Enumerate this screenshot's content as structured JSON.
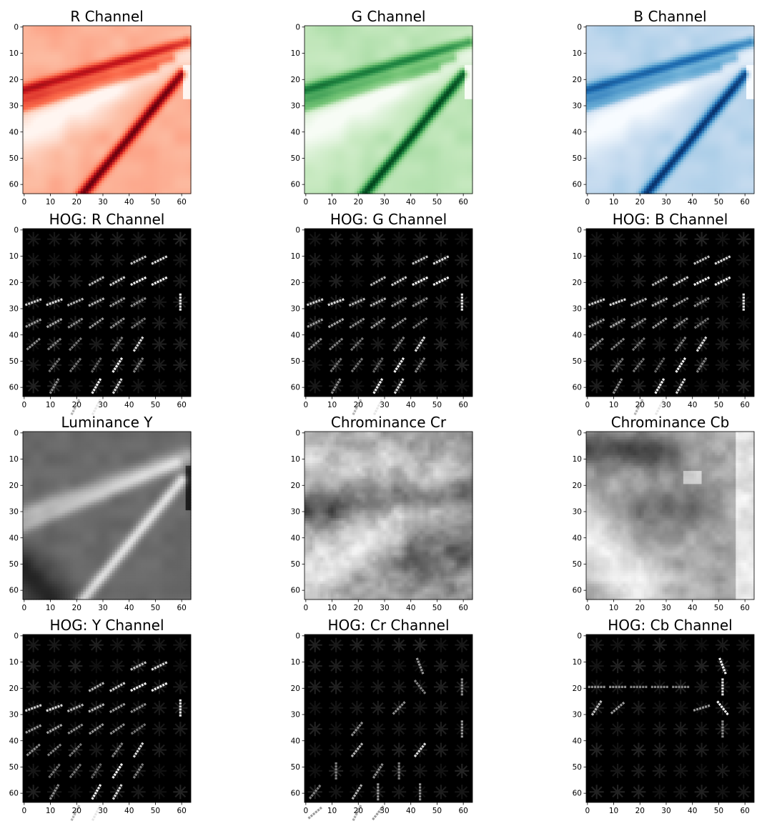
{
  "figure": {
    "background": "#ffffff"
  },
  "chart_data": [
    {
      "type": "heatmap",
      "title": "R Channel",
      "colormap": "Reds",
      "xlim": [
        0,
        63
      ],
      "ylim": [
        63,
        0
      ],
      "xticks": [
        "0",
        "10",
        "20",
        "30",
        "40",
        "50",
        "60"
      ],
      "yticks": [
        "0",
        "10",
        "20",
        "30",
        "40",
        "50",
        "60"
      ],
      "content": "image",
      "edge": "light-left",
      "grid": false
    },
    {
      "type": "heatmap",
      "title": "G Channel",
      "colormap": "Greens",
      "xlim": [
        0,
        63
      ],
      "ylim": [
        63,
        0
      ],
      "xticks": [
        "0",
        "10",
        "20",
        "30",
        "40",
        "50",
        "60"
      ],
      "yticks": [
        "0",
        "10",
        "20",
        "30",
        "40",
        "50",
        "60"
      ],
      "content": "image",
      "edge": "light-left",
      "grid": false
    },
    {
      "type": "heatmap",
      "title": "B Channel",
      "colormap": "Blues",
      "xlim": [
        0,
        63
      ],
      "ylim": [
        63,
        0
      ],
      "xticks": [
        "0",
        "10",
        "20",
        "30",
        "40",
        "50",
        "60"
      ],
      "yticks": [
        "0",
        "10",
        "20",
        "30",
        "40",
        "50",
        "60"
      ],
      "content": "image",
      "edge": "light-left",
      "grid": false
    },
    {
      "type": "heatmap",
      "title": "HOG: R Channel",
      "colormap": "gray",
      "xlim": [
        0,
        63
      ],
      "ylim": [
        63,
        0
      ],
      "xticks": [
        "0",
        "10",
        "20",
        "30",
        "40",
        "50",
        "60"
      ],
      "yticks": [
        "0",
        "10",
        "20",
        "30",
        "40",
        "50",
        "60"
      ],
      "content": "hog",
      "variant": "rgb",
      "grid": false
    },
    {
      "type": "heatmap",
      "title": "HOG: G Channel",
      "colormap": "gray",
      "xlim": [
        0,
        63
      ],
      "ylim": [
        63,
        0
      ],
      "xticks": [
        "0",
        "10",
        "20",
        "30",
        "40",
        "50",
        "60"
      ],
      "yticks": [
        "0",
        "10",
        "20",
        "30",
        "40",
        "50",
        "60"
      ],
      "content": "hog",
      "variant": "rgb",
      "grid": false
    },
    {
      "type": "heatmap",
      "title": "HOG: B Channel",
      "colormap": "gray",
      "xlim": [
        0,
        63
      ],
      "ylim": [
        63,
        0
      ],
      "xticks": [
        "0",
        "10",
        "20",
        "30",
        "40",
        "50",
        "60"
      ],
      "yticks": [
        "0",
        "10",
        "20",
        "30",
        "40",
        "50",
        "60"
      ],
      "content": "hog",
      "variant": "rgb",
      "grid": false
    },
    {
      "type": "heatmap",
      "title": "Luminance Y",
      "colormap": "gray",
      "xlim": [
        0,
        63
      ],
      "ylim": [
        63,
        0
      ],
      "xticks": [
        "0",
        "10",
        "20",
        "30",
        "40",
        "50",
        "60"
      ],
      "yticks": [
        "0",
        "10",
        "20",
        "30",
        "40",
        "50",
        "60"
      ],
      "content": "image",
      "variant": "y",
      "grid": false
    },
    {
      "type": "heatmap",
      "title": "Chrominance Cr",
      "colormap": "gray",
      "xlim": [
        0,
        63
      ],
      "ylim": [
        63,
        0
      ],
      "xticks": [
        "0",
        "10",
        "20",
        "30",
        "40",
        "50",
        "60"
      ],
      "yticks": [
        "0",
        "10",
        "20",
        "30",
        "40",
        "50",
        "60"
      ],
      "content": "image",
      "variant": "cr",
      "grid": false
    },
    {
      "type": "heatmap",
      "title": "Chrominance Cb",
      "colormap": "gray",
      "xlim": [
        0,
        63
      ],
      "ylim": [
        63,
        0
      ],
      "xticks": [
        "0",
        "10",
        "20",
        "30",
        "40",
        "50",
        "60"
      ],
      "yticks": [
        "0",
        "10",
        "20",
        "30",
        "40",
        "50",
        "60"
      ],
      "content": "image",
      "variant": "cb",
      "grid": false
    },
    {
      "type": "heatmap",
      "title": "HOG: Y Channel",
      "colormap": "gray",
      "xlim": [
        0,
        63
      ],
      "ylim": [
        63,
        0
      ],
      "xticks": [
        "0",
        "10",
        "20",
        "30",
        "40",
        "50",
        "60"
      ],
      "yticks": [
        "0",
        "10",
        "20",
        "30",
        "40",
        "50",
        "60"
      ],
      "content": "hog",
      "variant": "rgb",
      "grid": false
    },
    {
      "type": "heatmap",
      "title": "HOG: Cr Channel",
      "colormap": "gray",
      "xlim": [
        0,
        63
      ],
      "ylim": [
        63,
        0
      ],
      "xticks": [
        "0",
        "10",
        "20",
        "30",
        "40",
        "50",
        "60"
      ],
      "yticks": [
        "0",
        "10",
        "20",
        "30",
        "40",
        "50",
        "60"
      ],
      "content": "hog",
      "variant": "cr",
      "grid": false
    },
    {
      "type": "heatmap",
      "title": "HOG: Cb Channel",
      "colormap": "gray",
      "xlim": [
        0,
        63
      ],
      "ylim": [
        63,
        0
      ],
      "xticks": [
        "0",
        "10",
        "20",
        "30",
        "40",
        "50",
        "60"
      ],
      "yticks": [
        "0",
        "10",
        "20",
        "30",
        "40",
        "50",
        "60"
      ],
      "content": "hog",
      "variant": "cb",
      "grid": false
    }
  ]
}
